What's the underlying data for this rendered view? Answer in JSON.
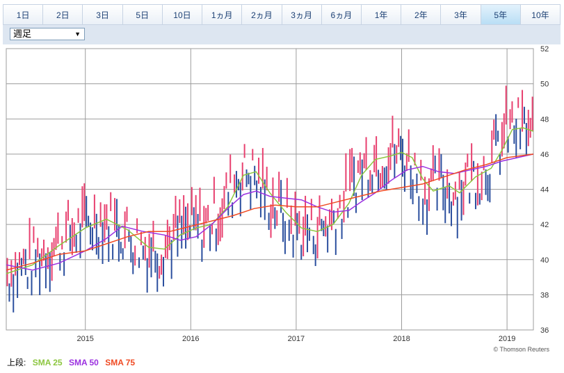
{
  "tabs": [
    {
      "label": "1日",
      "active": false
    },
    {
      "label": "2日",
      "active": false
    },
    {
      "label": "3日",
      "active": false
    },
    {
      "label": "5日",
      "active": false
    },
    {
      "label": "10日",
      "active": false
    },
    {
      "label": "1ヵ月",
      "active": false
    },
    {
      "label": "2ヵ月",
      "active": false
    },
    {
      "label": "3ヵ月",
      "active": false
    },
    {
      "label": "6ヵ月",
      "active": false
    },
    {
      "label": "1年",
      "active": false
    },
    {
      "label": "2年",
      "active": false
    },
    {
      "label": "3年",
      "active": false
    },
    {
      "label": "5年",
      "active": true
    },
    {
      "label": "10年",
      "active": false
    }
  ],
  "period_select": {
    "value": "週足"
  },
  "credit": "© Thomson Reuters",
  "legend": {
    "prefix": "上段:",
    "items": [
      {
        "label": "SMA 25",
        "color": "#8cc63f"
      },
      {
        "label": "SMA 50",
        "color": "#9b30e0"
      },
      {
        "label": "SMA 75",
        "color": "#ef4a23"
      }
    ]
  },
  "colors": {
    "up": "#e8406f",
    "down": "#2b4f9e",
    "grid": "#9c9c9c"
  },
  "chart_data": {
    "type": "line",
    "x_tick_labels": [
      "2015",
      "2016",
      "2017",
      "2018",
      "2019"
    ],
    "y_ticks": [
      36,
      38,
      40,
      42,
      44,
      46,
      48,
      50,
      52
    ],
    "ylim": [
      36,
      52
    ],
    "xlim": [
      2014.25,
      2019.25
    ],
    "candles_note": "weekly high-low bars, red=up, blue=down",
    "series": [
      {
        "name": "SMA 25",
        "color": "#8cc63f",
        "x": [
          2014.25,
          2014.5,
          2014.75,
          2015.0,
          2015.2,
          2015.4,
          2015.6,
          2015.75,
          2015.9,
          2016.05,
          2016.2,
          2016.35,
          2016.5,
          2016.62,
          2016.75,
          2016.9,
          2017.05,
          2017.2,
          2017.35,
          2017.5,
          2017.62,
          2017.75,
          2017.9,
          2018.0,
          2018.1,
          2018.2,
          2018.3,
          2018.45,
          2018.55,
          2018.7,
          2018.85,
          2018.95,
          2019.05,
          2019.15,
          2019.25
        ],
        "y": [
          39.2,
          39.7,
          40.8,
          41.8,
          42.3,
          41.7,
          40.7,
          40.6,
          41.4,
          41.8,
          42.0,
          43.0,
          44.8,
          45.0,
          43.8,
          42.7,
          41.8,
          41.6,
          42.0,
          43.2,
          44.8,
          45.7,
          45.9,
          46.1,
          45.8,
          44.6,
          43.9,
          44.2,
          43.8,
          44.7,
          45.2,
          46.2,
          47.4,
          47.5,
          47.3
        ]
      },
      {
        "name": "SMA 50",
        "color": "#9b30e0",
        "x": [
          2014.25,
          2014.5,
          2014.75,
          2015.0,
          2015.2,
          2015.35,
          2015.55,
          2015.75,
          2015.9,
          2016.05,
          2016.2,
          2016.35,
          2016.5,
          2016.62,
          2016.75,
          2016.9,
          2017.05,
          2017.2,
          2017.35,
          2017.5,
          2017.62,
          2017.75,
          2017.9,
          2018.05,
          2018.2,
          2018.35,
          2018.5,
          2018.65,
          2018.8,
          2018.95,
          2019.1,
          2019.25
        ],
        "y": [
          39.7,
          39.4,
          39.8,
          40.5,
          41.2,
          41.9,
          41.6,
          41.4,
          41.1,
          41.3,
          42.0,
          42.9,
          43.7,
          43.9,
          43.6,
          43.5,
          43.4,
          43.0,
          42.7,
          42.8,
          43.3,
          43.8,
          44.5,
          45.1,
          45.3,
          45.0,
          44.9,
          45.1,
          45.3,
          45.6,
          45.8,
          46.0
        ]
      },
      {
        "name": "SMA 75",
        "color": "#ef4a23",
        "x": [
          2014.25,
          2014.5,
          2014.75,
          2015.0,
          2015.2,
          2015.4,
          2015.6,
          2015.8,
          2016.0,
          2016.2,
          2016.4,
          2016.6,
          2016.8,
          2017.0,
          2017.2,
          2017.4,
          2017.6,
          2017.8,
          2018.0,
          2018.2,
          2018.4,
          2018.6,
          2018.8,
          2019.0,
          2019.25
        ],
        "y": [
          39.4,
          39.8,
          40.3,
          40.5,
          40.9,
          41.3,
          41.6,
          41.6,
          41.9,
          42.2,
          42.5,
          42.9,
          43.1,
          43.0,
          43.0,
          43.3,
          43.6,
          43.9,
          44.1,
          44.3,
          44.7,
          45.1,
          45.4,
          45.8,
          46.0
        ]
      }
    ]
  }
}
